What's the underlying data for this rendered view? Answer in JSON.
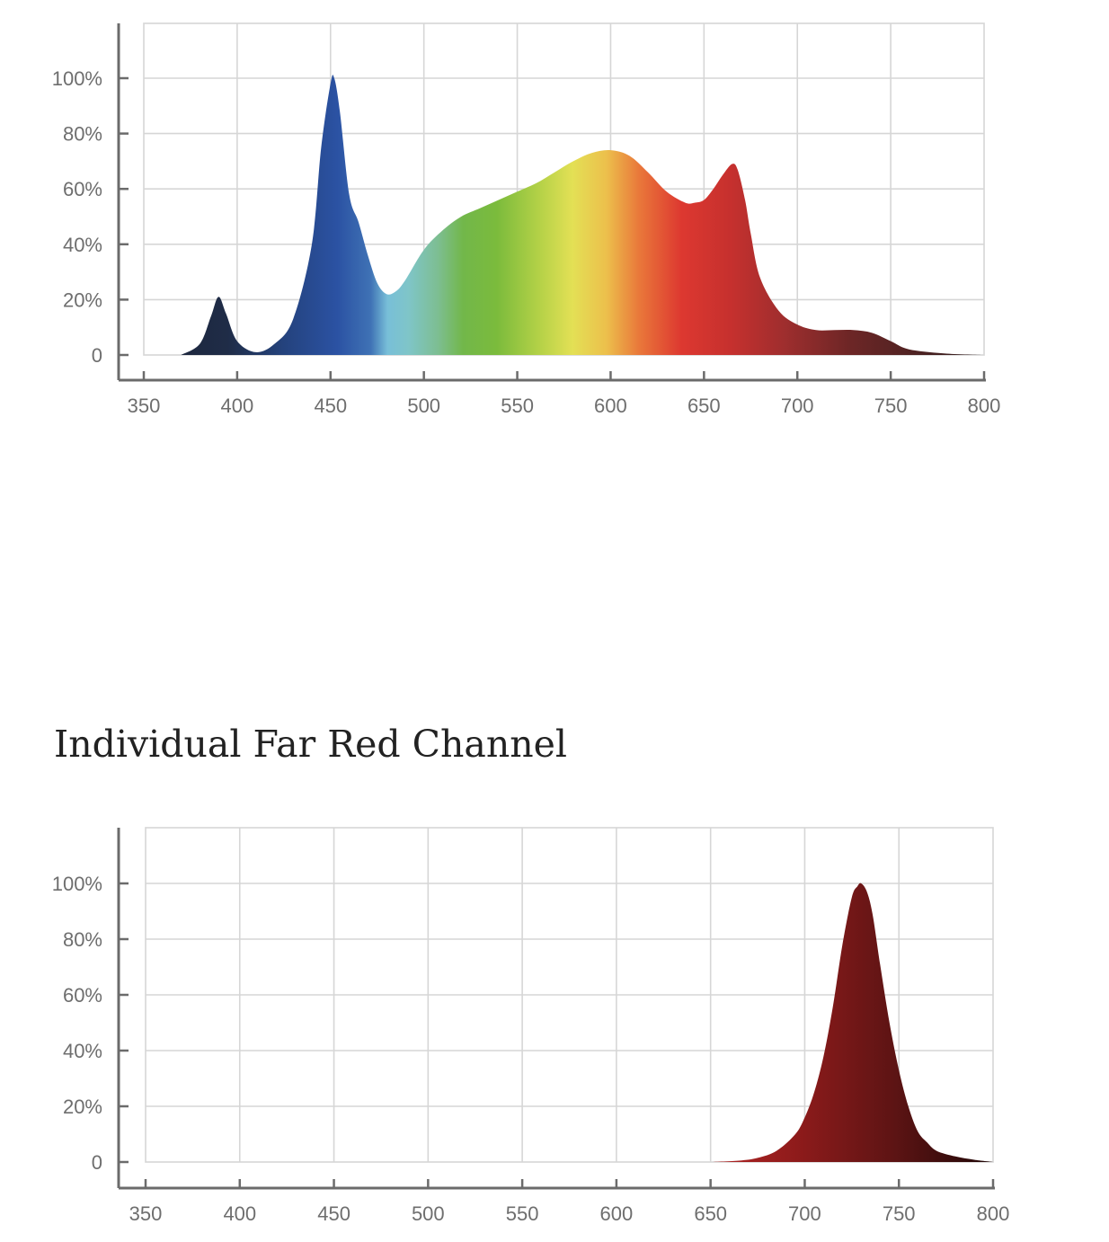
{
  "section_title": "Individual Far Red Channel",
  "chart_data": [
    {
      "type": "area",
      "title": "",
      "xlabel": "",
      "ylabel": "",
      "xlim": [
        350,
        800
      ],
      "ylim": [
        0,
        100
      ],
      "grid": true,
      "x_ticks": [
        "350",
        "400",
        "450",
        "500",
        "550",
        "600",
        "650",
        "700",
        "750",
        "800"
      ],
      "y_ticks": [
        "0",
        "20%",
        "40%",
        "60%",
        "80%",
        "100%"
      ],
      "fill": "wavelength spectrum gradient",
      "x": [
        370,
        380,
        386,
        390,
        394,
        400,
        410,
        420,
        430,
        440,
        445,
        450,
        452,
        455,
        460,
        465,
        470,
        475,
        480,
        485,
        490,
        500,
        510,
        520,
        530,
        540,
        550,
        560,
        570,
        580,
        590,
        600,
        610,
        620,
        630,
        640,
        645,
        650,
        655,
        660,
        665,
        668,
        672,
        675,
        680,
        690,
        700,
        710,
        720,
        730,
        740,
        750,
        760,
        780,
        800
      ],
      "y": [
        0,
        4,
        14,
        21,
        15,
        5,
        1,
        4,
        13,
        40,
        75,
        98,
        100,
        88,
        58,
        48,
        36,
        26,
        22,
        23,
        27,
        38,
        45,
        50,
        53,
        56,
        59,
        62,
        66,
        70,
        73,
        74,
        72,
        66,
        59,
        55,
        55,
        56,
        60,
        65,
        69,
        67,
        56,
        44,
        28,
        16,
        11,
        9,
        9,
        9,
        8,
        5,
        2,
        0.5,
        0
      ]
    },
    {
      "type": "area",
      "title": "",
      "xlabel": "",
      "ylabel": "",
      "xlim": [
        350,
        800
      ],
      "ylim": [
        0,
        100
      ],
      "grid": true,
      "x_ticks": [
        "350",
        "400",
        "450",
        "500",
        "550",
        "600",
        "650",
        "700",
        "750",
        "800"
      ],
      "y_ticks": [
        "0",
        "20%",
        "40%",
        "60%",
        "80%",
        "100%"
      ],
      "fill": "far red gradient",
      "x": [
        650,
        665,
        675,
        685,
        695,
        700,
        705,
        710,
        715,
        720,
        725,
        728,
        730,
        733,
        736,
        740,
        745,
        750,
        755,
        760,
        765,
        770,
        780,
        790,
        800
      ],
      "y": [
        0,
        0.5,
        1.5,
        4,
        10,
        16,
        25,
        38,
        56,
        78,
        95,
        99,
        100,
        97,
        89,
        71,
        50,
        33,
        20,
        11,
        7,
        4,
        2,
        0.8,
        0
      ]
    }
  ],
  "colors": {
    "grid": "#d6d6d6",
    "axis": "#6b6b6b",
    "tick_text": "#6e6e6e",
    "title_text": "#222222"
  }
}
